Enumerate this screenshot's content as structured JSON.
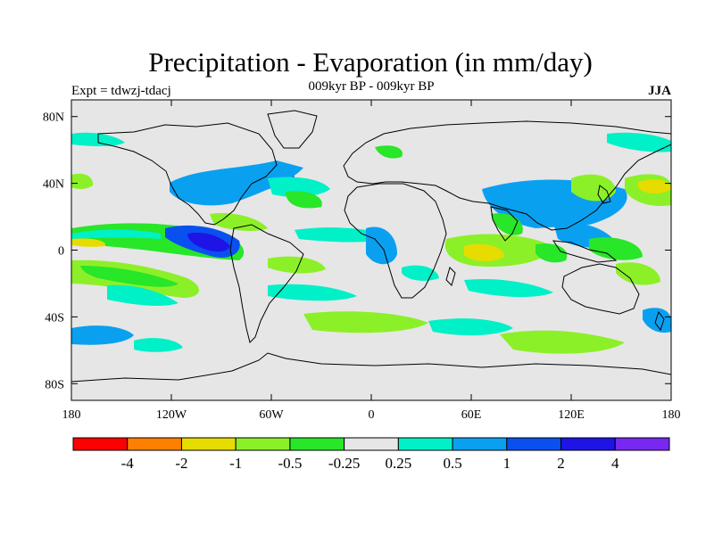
{
  "header": {
    "title": "Precipitation - Evaporation (in mm/day)",
    "subtitle": "009kyr BP - 009kyr BP",
    "expt": "Expt = tdwzj-tdacj",
    "season": "JJA"
  },
  "map": {
    "lat_range": [
      -90,
      90
    ],
    "lon_range": [
      -180,
      180
    ],
    "background": "#e6e6e6",
    "lat_ticks": [
      {
        "value": 80,
        "label": "80N"
      },
      {
        "value": 40,
        "label": "40N"
      },
      {
        "value": 0,
        "label": "0"
      },
      {
        "value": -40,
        "label": "40S"
      },
      {
        "value": -80,
        "label": "80S"
      }
    ],
    "lon_ticks": [
      {
        "value": -180,
        "label": "180"
      },
      {
        "value": -120,
        "label": "120W"
      },
      {
        "value": -60,
        "label": "60W"
      },
      {
        "value": 0,
        "label": "0"
      },
      {
        "value": 60,
        "label": "60E"
      },
      {
        "value": 120,
        "label": "120E"
      },
      {
        "value": 180,
        "label": "180"
      }
    ]
  },
  "colorbar": {
    "colors": [
      "#ff0000",
      "#ff8000",
      "#e6dc00",
      "#8cf028",
      "#28e628",
      "#e6e6e6",
      "#00f0c8",
      "#0aa0f0",
      "#0a50f0",
      "#1e14e6",
      "#7828f0"
    ],
    "labels": [
      "-4",
      "-2",
      "-1",
      "-0.5",
      "-0.25",
      "0.25",
      "0.5",
      "1",
      "2",
      "4"
    ]
  }
}
